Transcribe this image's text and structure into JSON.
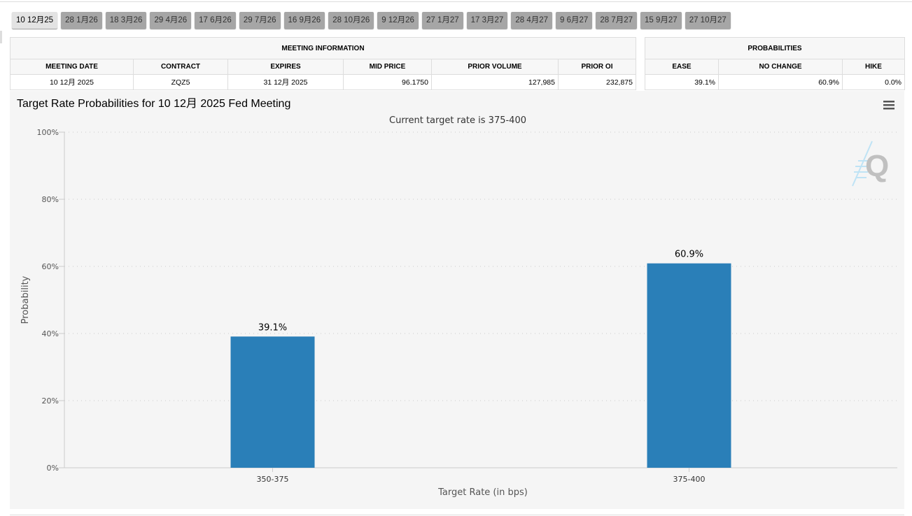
{
  "tabs": [
    "10 12月25",
    "28 1月26",
    "18 3月26",
    "29 4月26",
    "17 6月26",
    "29 7月26",
    "16 9月26",
    "28 10月26",
    "9 12月26",
    "27 1月27",
    "17 3月27",
    "28 4月27",
    "9 6月27",
    "28 7月27",
    "15 9月27",
    "27 10月27"
  ],
  "meeting_info": {
    "title": "MEETING INFORMATION",
    "headers": [
      "MEETING DATE",
      "CONTRACT",
      "EXPIRES",
      "MID PRICE",
      "PRIOR VOLUME",
      "PRIOR OI"
    ],
    "row": [
      "10 12月 2025",
      "ZQZ5",
      "31 12月 2025",
      "96.1750",
      "127,985",
      "232,875"
    ]
  },
  "probabilities": {
    "title": "PROBABILITIES",
    "headers": [
      "EASE",
      "NO CHANGE",
      "HIKE"
    ],
    "row": [
      "39.1%",
      "60.9%",
      "0.0%"
    ]
  },
  "chart_data": {
    "type": "bar",
    "title": "Target Rate Probabilities for 10 12月 2025 Fed Meeting",
    "subtitle": "Current target rate is 375-400",
    "xlabel": "Target Rate (in bps)",
    "ylabel": "Probability",
    "categories": [
      "350-375",
      "375-400"
    ],
    "values": [
      39.1,
      60.9
    ],
    "data_labels": [
      "39.1%",
      "60.9%"
    ],
    "yticks": [
      "0%",
      "20%",
      "40%",
      "60%",
      "80%",
      "100%"
    ],
    "ylim": [
      0,
      100
    ],
    "grid": true,
    "color": "#2a7fb8"
  }
}
